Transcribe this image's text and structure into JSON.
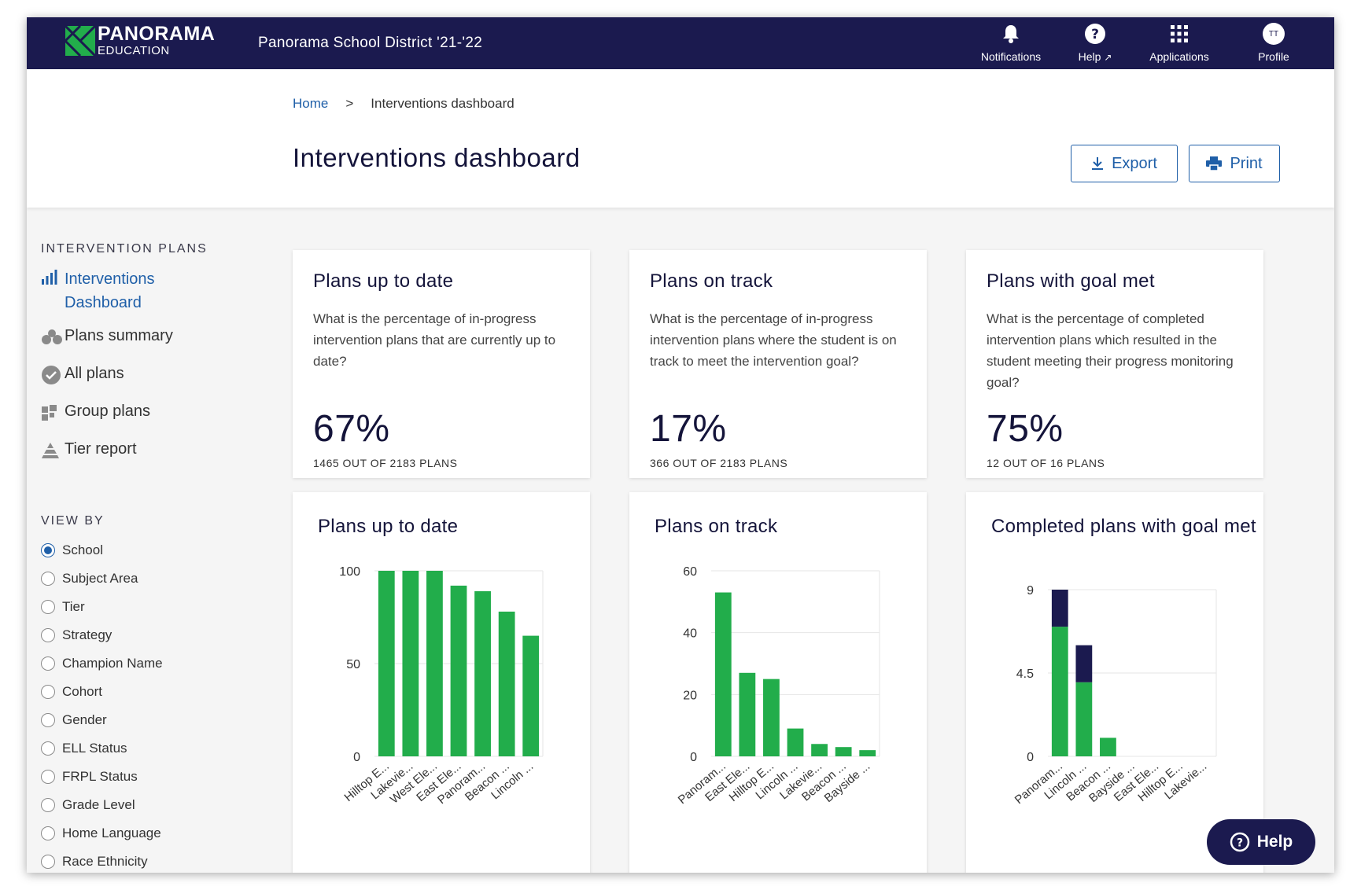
{
  "brand": {
    "title": "PANORAMA",
    "subtitle": "EDUCATION"
  },
  "district": "Panorama School District '21-'22",
  "nav": {
    "notifications": "Notifications",
    "help": "Help",
    "applications": "Applications",
    "profile": "Profile",
    "avatar_initials": "TT"
  },
  "breadcrumb": {
    "home": "Home",
    "separator": ">",
    "current": "Interventions dashboard"
  },
  "page_title": "Interventions dashboard",
  "buttons": {
    "export": "Export",
    "print": "Print"
  },
  "sidebar": {
    "plans_heading": "INTERVENTION PLANS",
    "items": [
      {
        "label_line1": "Interventions",
        "label_line2": "Dashboard",
        "icon": "bar-chart-icon",
        "active": true
      },
      {
        "label": "Plans summary",
        "icon": "dots-cluster-icon"
      },
      {
        "label": "All plans",
        "icon": "check-circle-icon"
      },
      {
        "label": "Group plans",
        "icon": "grid-blocks-icon"
      },
      {
        "label": "Tier report",
        "icon": "pyramid-icon"
      }
    ],
    "view_heading": "VIEW BY",
    "view_options": [
      "School",
      "Subject Area",
      "Tier",
      "Strategy",
      "Champion Name",
      "Cohort",
      "Gender",
      "ELL Status",
      "FRPL Status",
      "Grade Level",
      "Home Language",
      "Race Ethnicity"
    ],
    "selected_view": "School"
  },
  "stats": [
    {
      "title": "Plans up to date",
      "description": "What is the percentage of in-progress intervention plans that are currently up to date?",
      "value": "67%",
      "detail": "1465 OUT OF 2183 PLANS"
    },
    {
      "title": "Plans on track",
      "description": "What is the percentage of in-progress intervention plans where the student is on track to meet the intervention goal?",
      "value": "17%",
      "detail": "366 OUT OF 2183 PLANS"
    },
    {
      "title": "Plans with goal met",
      "description": "What is the percentage of completed intervention plans which resulted in the student meeting their progress monitoring goal?",
      "value": "75%",
      "detail": "12 OUT OF 16 PLANS"
    }
  ],
  "colors": {
    "navy": "#1b1a4f",
    "green": "#22ad4b",
    "link": "#1f5fa8"
  },
  "help_button": "Help",
  "chart_data": [
    {
      "type": "bar",
      "title": "Plans up to date",
      "categories": [
        "Hilltop E...",
        "Lakevie...",
        "West Ele...",
        "East Ele...",
        "Panoram...",
        "Beacon ...",
        "Lincoln ..."
      ],
      "values": [
        100,
        100,
        100,
        92,
        89,
        78,
        65
      ],
      "ylim": [
        0,
        100
      ],
      "yticks": [
        "0",
        "50",
        "100"
      ],
      "color": "#22ad4b"
    },
    {
      "type": "bar",
      "title": "Plans on track",
      "categories": [
        "Panoram...",
        "East Ele...",
        "Hilltop E...",
        "Lincoln ...",
        "Lakevie...",
        "Beacon ...",
        "Bayside ..."
      ],
      "values": [
        53,
        27,
        25,
        9,
        4,
        3,
        2
      ],
      "ylim": [
        0,
        60
      ],
      "yticks": [
        "0",
        "20",
        "40",
        "60"
      ],
      "color": "#22ad4b"
    },
    {
      "type": "bar",
      "title": "Completed plans with goal met",
      "stacked": true,
      "categories": [
        "Panoram...",
        "Lincoln ...",
        "Beacon ...",
        "Bayside ...",
        "East Ele...",
        "Hilltop E...",
        "Lakevie..."
      ],
      "series": [
        {
          "values": [
            7,
            4,
            1,
            0,
            0,
            0,
            0
          ],
          "color": "#22ad4b"
        },
        {
          "values": [
            2,
            2,
            0,
            0,
            0,
            0,
            0
          ],
          "color": "#1b1a4f"
        }
      ],
      "ylim": [
        0,
        9
      ],
      "yticks": [
        "0",
        "4.5",
        "9"
      ]
    }
  ]
}
